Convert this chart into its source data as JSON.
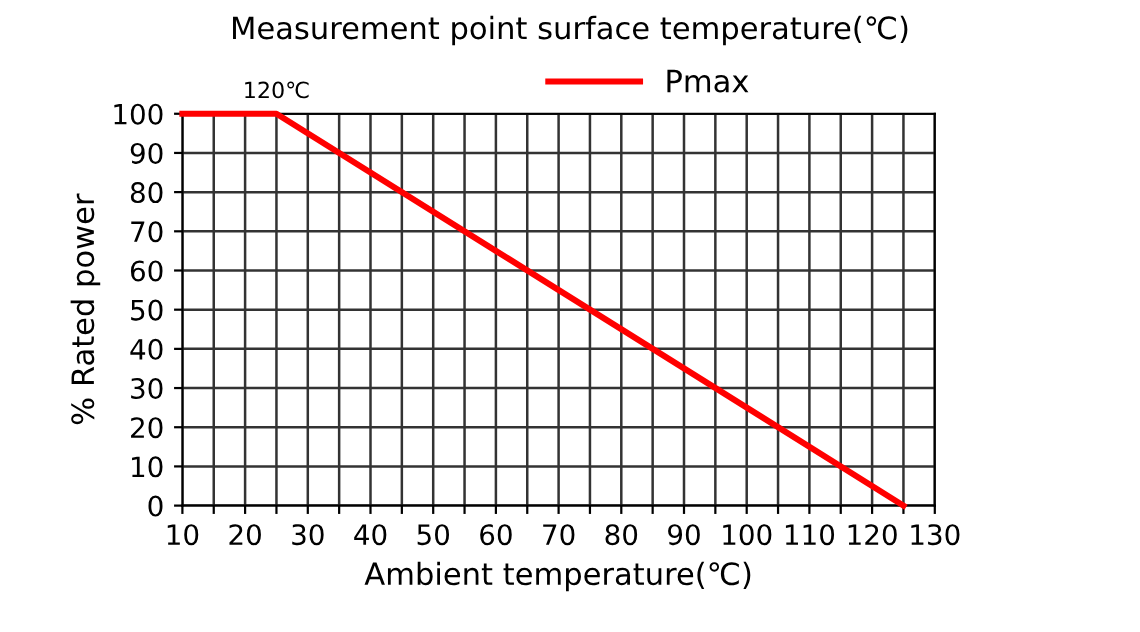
{
  "chart_data": {
    "type": "line",
    "title": "Measurement point surface temperature(℃)",
    "xlabel": "Ambient temperature(℃)",
    "ylabel": "% Rated power",
    "series": [
      {
        "name": "Pmax",
        "color": "#ff0000",
        "x": [
          10,
          25,
          125
        ],
        "values": [
          100,
          100,
          0
        ]
      }
    ],
    "xlim": [
      10,
      130
    ],
    "ylim": [
      0,
      100
    ],
    "xticks": [
      10,
      {
        "value": 15,
        "label": null
      },
      20,
      {
        "value": 25,
        "label": null
      },
      30,
      {
        "value": 35,
        "label": null
      },
      40,
      {
        "value": 45,
        "label": null
      },
      50,
      {
        "value": 55,
        "label": null
      },
      60,
      {
        "value": 65,
        "label": null
      },
      70,
      {
        "value": 75,
        "label": null
      },
      80,
      {
        "value": 85,
        "label": null
      },
      90,
      {
        "value": 95,
        "label": null
      },
      100,
      {
        "value": 105,
        "label": null
      },
      110,
      {
        "value": 115,
        "label": null
      },
      120,
      {
        "value": 125,
        "label": null
      },
      130
    ],
    "yticks": [
      0,
      10,
      20,
      30,
      40,
      50,
      60,
      70,
      80,
      90,
      100
    ],
    "annotations": [
      {
        "text": "120℃",
        "x": 25,
        "y": 100
      }
    ],
    "grid": true,
    "legend": "top",
    "marker": "none",
    "line_style": "solid"
  }
}
